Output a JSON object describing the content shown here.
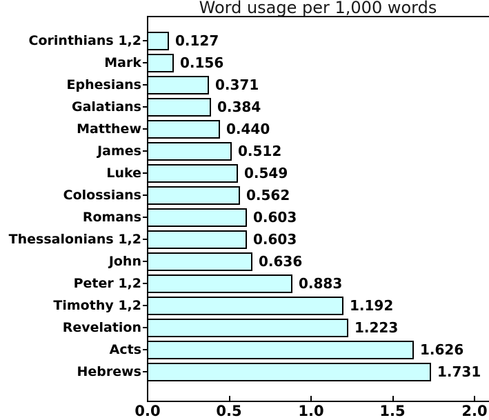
{
  "title": "Word usage per 1,000 words",
  "chart_data": {
    "type": "bar",
    "orientation": "horizontal",
    "title": "Word usage per 1,000 words",
    "xlabel": "",
    "ylabel": "",
    "categories": [
      "Corinthians 1,2",
      "Mark",
      "Ephesians",
      "Galatians",
      "Matthew",
      "James",
      "Luke",
      "Colossians",
      "Romans",
      "Thessalonians 1,2",
      "John",
      "Peter 1,2",
      "Timothy 1,2",
      "Revelation",
      "Acts",
      "Hebrews"
    ],
    "values": [
      0.127,
      0.156,
      0.371,
      0.384,
      0.44,
      0.512,
      0.549,
      0.562,
      0.603,
      0.603,
      0.636,
      0.883,
      1.192,
      1.223,
      1.626,
      1.731
    ],
    "value_labels": [
      "0.127",
      "0.156",
      "0.371",
      "0.384",
      "0.440",
      "0.512",
      "0.549",
      "0.562",
      "0.603",
      "0.603",
      "0.636",
      "0.883",
      "1.192",
      "1.223",
      "1.626",
      "1.731"
    ],
    "x_ticks": [
      0.0,
      0.5,
      1.0,
      1.5,
      2.0
    ],
    "x_tick_labels": [
      "0.0",
      "0.5",
      "1.0",
      "1.5",
      "2.0"
    ],
    "xlim": [
      0.0,
      2.0
    ],
    "grid": false,
    "legend": null,
    "bar_fill_color": "#ccffff",
    "bar_border_color": "#000000",
    "axis_color": "#000000",
    "text_color": "#000000"
  }
}
